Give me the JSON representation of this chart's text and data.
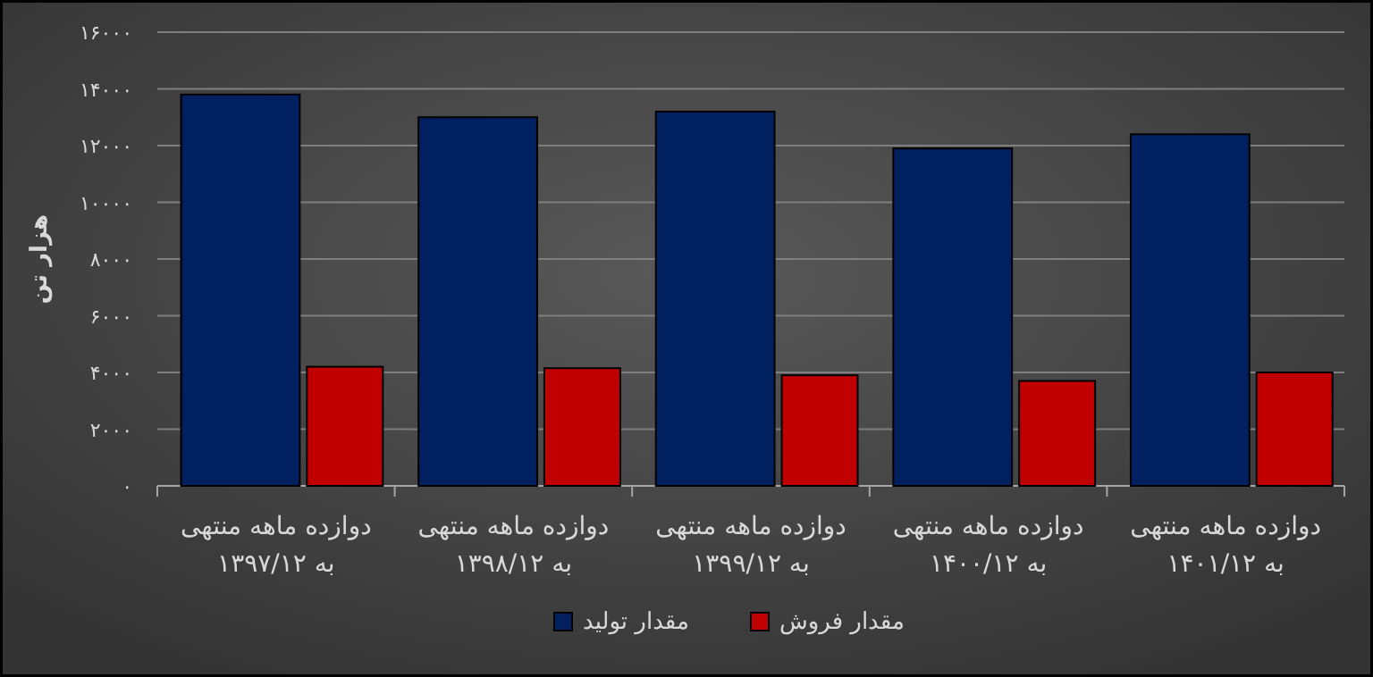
{
  "chart_data": {
    "type": "bar",
    "ylabel": "هزار تن",
    "categories": [
      "دوازده ماهه منتهی\nبه ۱۳۹۷/۱۲",
      "دوازده ماهه منتهی\nبه ۱۳۹۸/۱۲",
      "دوازده ماهه منتهی\nبه ۱۳۹۹/۱۲",
      "دوازده ماهه منتهی\nبه ۱۴۰۰/۱۲",
      "دوازده ماهه منتهی\nبه ۱۴۰۱/۱۲"
    ],
    "series": [
      {
        "name": "مقدار تولید",
        "color": "#002060",
        "values": [
          13800,
          13000,
          13200,
          11900,
          12400
        ]
      },
      {
        "name": "مقدار فروش",
        "color": "#c00000",
        "values": [
          4200,
          4150,
          3900,
          3700,
          4000
        ]
      }
    ],
    "ylim": [
      0,
      16000
    ],
    "yticks": [
      {
        "value": 0,
        "label": "۰"
      },
      {
        "value": 2000,
        "label": "۲۰۰۰"
      },
      {
        "value": 4000,
        "label": "۴۰۰۰"
      },
      {
        "value": 6000,
        "label": "۶۰۰۰"
      },
      {
        "value": 8000,
        "label": "۸۰۰۰"
      },
      {
        "value": 10000,
        "label": "۱۰۰۰۰"
      },
      {
        "value": 12000,
        "label": "۱۲۰۰۰"
      },
      {
        "value": 14000,
        "label": "۱۴۰۰۰"
      },
      {
        "value": 16000,
        "label": "۱۶۰۰۰"
      }
    ],
    "grid": "y",
    "legend": "bottom"
  }
}
